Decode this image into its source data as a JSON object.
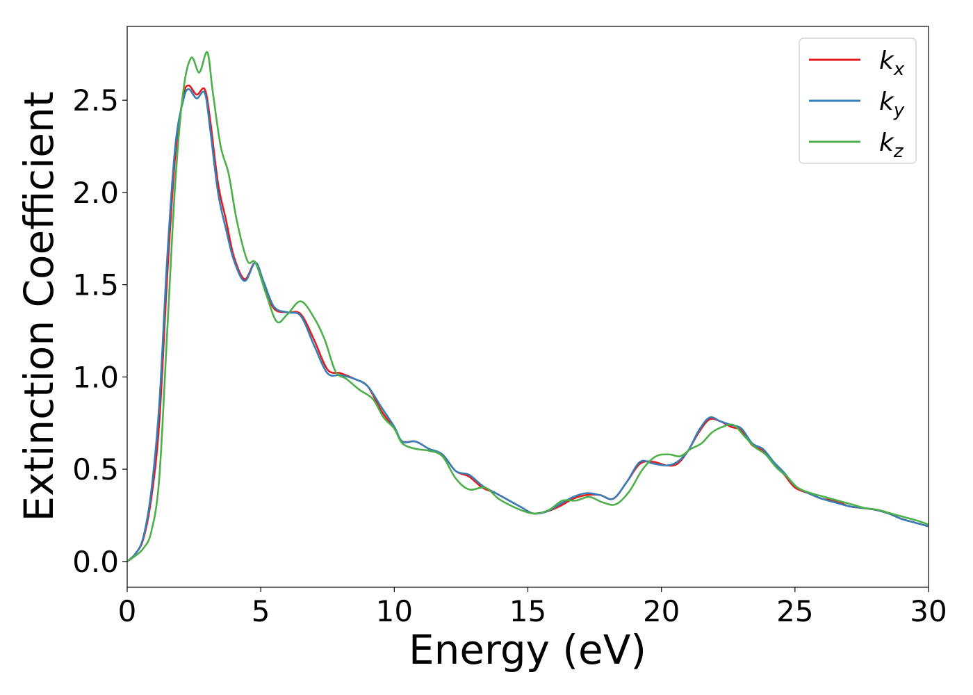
{
  "chart_data": {
    "type": "line",
    "title": "",
    "xlabel": "Energy (eV)",
    "ylabel": "Extinction Coefficient",
    "xlim": [
      0,
      30
    ],
    "ylim": [
      -0.14,
      2.9
    ],
    "xticks": [
      0,
      5,
      10,
      15,
      20,
      25,
      30
    ],
    "xtick_labels": [
      "0",
      "5",
      "10",
      "15",
      "20",
      "25",
      "30"
    ],
    "yticks": [
      0.0,
      0.5,
      1.0,
      1.5,
      2.0,
      2.5
    ],
    "ytick_labels": [
      "0.0",
      "0.5",
      "1.0",
      "1.5",
      "2.0",
      "2.5"
    ],
    "grid": false,
    "legend_position": "top-right",
    "series": [
      {
        "name": "k_x",
        "legend_main": "k",
        "legend_sub": "x",
        "color": "#e41a1c",
        "x": [
          0,
          0.3,
          0.6,
          0.9,
          1.2,
          1.5,
          1.8,
          2.1,
          2.3,
          2.6,
          2.9,
          3.1,
          3.4,
          3.7,
          4.0,
          4.4,
          4.8,
          5.1,
          5.5,
          6.0,
          6.5,
          7.0,
          7.5,
          8.0,
          8.5,
          9.0,
          9.5,
          10.0,
          10.3,
          10.8,
          11.3,
          11.8,
          12.3,
          12.8,
          13.3,
          13.8,
          14.3,
          14.8,
          15.2,
          15.7,
          16.2,
          16.7,
          17.2,
          17.7,
          18.2,
          18.7,
          19.2,
          19.7,
          20.2,
          20.6,
          21.0,
          21.4,
          21.8,
          22.2,
          22.6,
          23.0,
          23.4,
          23.8,
          24.2,
          24.6,
          25.0,
          25.5,
          26.0,
          26.5,
          27.0,
          27.5,
          28.0,
          28.5,
          29.0,
          29.5,
          30.0
        ],
        "y": [
          0.0,
          0.04,
          0.12,
          0.34,
          0.75,
          1.55,
          2.2,
          2.52,
          2.58,
          2.53,
          2.56,
          2.4,
          2.05,
          1.85,
          1.65,
          1.53,
          1.62,
          1.5,
          1.37,
          1.35,
          1.34,
          1.2,
          1.04,
          1.02,
          0.99,
          0.95,
          0.82,
          0.72,
          0.65,
          0.65,
          0.61,
          0.58,
          0.49,
          0.46,
          0.4,
          0.37,
          0.33,
          0.29,
          0.26,
          0.27,
          0.3,
          0.34,
          0.36,
          0.36,
          0.34,
          0.43,
          0.53,
          0.54,
          0.52,
          0.53,
          0.6,
          0.7,
          0.77,
          0.76,
          0.73,
          0.71,
          0.63,
          0.6,
          0.53,
          0.47,
          0.4,
          0.37,
          0.34,
          0.33,
          0.3,
          0.29,
          0.28,
          0.26,
          0.23,
          0.21,
          0.19
        ]
      },
      {
        "name": "k_y",
        "legend_main": "k",
        "legend_sub": "y",
        "color": "#377eb8",
        "x": [
          0,
          0.3,
          0.6,
          0.9,
          1.2,
          1.5,
          1.8,
          2.1,
          2.3,
          2.6,
          2.9,
          3.1,
          3.4,
          3.7,
          4.0,
          4.4,
          4.8,
          5.1,
          5.5,
          6.0,
          6.5,
          7.0,
          7.5,
          8.0,
          8.5,
          9.0,
          9.5,
          10.0,
          10.3,
          10.8,
          11.3,
          11.8,
          12.3,
          12.8,
          13.3,
          13.8,
          14.3,
          14.8,
          15.2,
          15.7,
          16.2,
          16.7,
          17.2,
          17.7,
          18.2,
          18.7,
          19.2,
          19.7,
          20.2,
          20.6,
          21.0,
          21.4,
          21.8,
          22.2,
          22.6,
          23.0,
          23.4,
          23.8,
          24.2,
          24.6,
          25.0,
          25.5,
          26.0,
          26.5,
          27.0,
          27.5,
          28.0,
          28.5,
          29.0,
          29.5,
          30.0
        ],
        "y": [
          0.0,
          0.04,
          0.13,
          0.38,
          0.85,
          1.65,
          2.25,
          2.5,
          2.56,
          2.51,
          2.54,
          2.35,
          2.0,
          1.8,
          1.63,
          1.52,
          1.62,
          1.52,
          1.38,
          1.35,
          1.33,
          1.17,
          1.02,
          1.01,
          0.99,
          0.95,
          0.84,
          0.73,
          0.65,
          0.65,
          0.61,
          0.58,
          0.49,
          0.47,
          0.41,
          0.37,
          0.33,
          0.29,
          0.26,
          0.27,
          0.31,
          0.35,
          0.37,
          0.36,
          0.34,
          0.43,
          0.54,
          0.53,
          0.52,
          0.54,
          0.6,
          0.71,
          0.78,
          0.76,
          0.74,
          0.72,
          0.64,
          0.61,
          0.54,
          0.48,
          0.41,
          0.37,
          0.34,
          0.32,
          0.3,
          0.29,
          0.28,
          0.26,
          0.23,
          0.21,
          0.19
        ]
      },
      {
        "name": "k_z",
        "legend_main": "k",
        "legend_sub": "z",
        "color": "#4daf4a",
        "x": [
          0,
          0.3,
          0.6,
          0.9,
          1.2,
          1.5,
          1.8,
          2.1,
          2.4,
          2.7,
          3.0,
          3.2,
          3.5,
          3.8,
          4.1,
          4.5,
          4.8,
          5.2,
          5.6,
          6.0,
          6.5,
          7.0,
          7.4,
          7.8,
          8.2,
          8.7,
          9.2,
          9.6,
          10.0,
          10.3,
          10.8,
          11.3,
          11.8,
          12.3,
          12.8,
          13.4,
          13.9,
          14.4,
          14.9,
          15.3,
          15.8,
          16.3,
          16.8,
          17.3,
          17.8,
          18.3,
          18.8,
          19.3,
          19.8,
          20.3,
          20.7,
          21.1,
          21.5,
          21.9,
          22.3,
          22.7,
          23.1,
          23.5,
          23.9,
          24.3,
          24.7,
          25.1,
          25.6,
          26.1,
          26.6,
          27.1,
          27.6,
          28.1,
          28.6,
          29.1,
          29.6,
          30.0
        ],
        "y": [
          0.0,
          0.03,
          0.07,
          0.16,
          0.45,
          1.25,
          2.05,
          2.55,
          2.73,
          2.65,
          2.76,
          2.55,
          2.25,
          2.1,
          1.85,
          1.63,
          1.62,
          1.45,
          1.3,
          1.34,
          1.41,
          1.32,
          1.2,
          1.03,
          0.99,
          0.93,
          0.88,
          0.78,
          0.72,
          0.64,
          0.61,
          0.6,
          0.57,
          0.45,
          0.39,
          0.4,
          0.34,
          0.3,
          0.27,
          0.26,
          0.28,
          0.33,
          0.33,
          0.35,
          0.32,
          0.31,
          0.38,
          0.5,
          0.57,
          0.58,
          0.57,
          0.61,
          0.64,
          0.7,
          0.73,
          0.74,
          0.68,
          0.62,
          0.58,
          0.51,
          0.46,
          0.4,
          0.37,
          0.35,
          0.33,
          0.31,
          0.29,
          0.28,
          0.26,
          0.24,
          0.22,
          0.2
        ]
      }
    ]
  }
}
